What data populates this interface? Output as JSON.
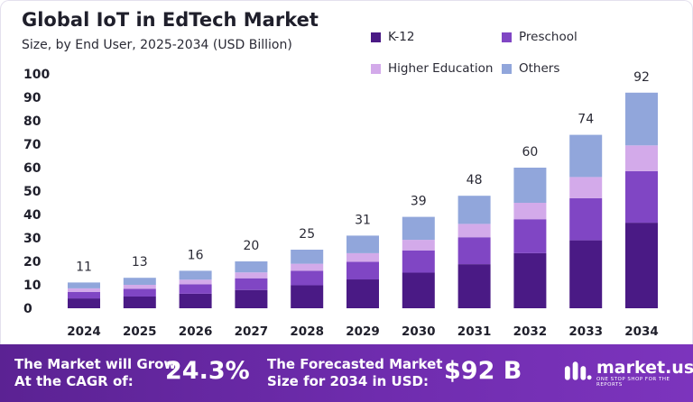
{
  "header": {
    "title": "Global IoT in EdTech Market",
    "subtitle": "Size, by End User, 2025-2034 (USD Billion)"
  },
  "legend": [
    {
      "label": "K-12",
      "color": "#4a1a85"
    },
    {
      "label": "Preschool",
      "color": "#8046c4"
    },
    {
      "label": "Higher Education",
      "color": "#d3aaea"
    },
    {
      "label": "Others",
      "color": "#91a6db"
    }
  ],
  "chart_data": {
    "type": "bar",
    "stacked": true,
    "categories": [
      "2024",
      "2025",
      "2026",
      "2027",
      "2028",
      "2029",
      "2030",
      "2031",
      "2032",
      "2033",
      "2034"
    ],
    "totals": [
      "11",
      "13",
      "16",
      "20",
      "25",
      "31",
      "39",
      "48",
      "60",
      "74",
      "92"
    ],
    "series": [
      {
        "name": "K-12",
        "color": "#4a1a85",
        "values": [
          4.2,
          5.0,
          6.2,
          7.8,
          9.8,
          12.3,
          15.2,
          18.8,
          23.5,
          29.0,
          36.5
        ]
      },
      {
        "name": "Preschool",
        "color": "#8046c4",
        "values": [
          2.8,
          3.3,
          4.0,
          5.0,
          6.2,
          7.5,
          9.5,
          11.5,
          14.5,
          18.0,
          22.0
        ]
      },
      {
        "name": "Higher Education",
        "color": "#d3aaea",
        "values": [
          1.5,
          1.7,
          2.0,
          2.5,
          3.0,
          3.7,
          4.5,
          5.7,
          7.0,
          9.0,
          11.0
        ]
      },
      {
        "name": "Others",
        "color": "#91a6db",
        "values": [
          2.5,
          3.0,
          3.8,
          4.7,
          6.0,
          7.5,
          9.8,
          12.0,
          15.0,
          18.0,
          22.5
        ]
      }
    ],
    "ylim": [
      0,
      100
    ],
    "yticks": [
      0,
      10,
      20,
      30,
      40,
      50,
      60,
      70,
      80,
      90,
      100
    ],
    "grid": false,
    "legend_position": "top-right"
  },
  "footer": {
    "cagr_label_line1": "The Market will Grow",
    "cagr_label_line2": "At the CAGR of:",
    "cagr_value": "24.3%",
    "forecast_label_line1": "The Forecasted Market",
    "forecast_label_line2": "Size for 2034 in USD:",
    "forecast_value": "$92 B",
    "brand_name": "market.us",
    "brand_tagline": "ONE STOP SHOP FOR THE REPORTS",
    "brand_color": "#5b2293"
  }
}
